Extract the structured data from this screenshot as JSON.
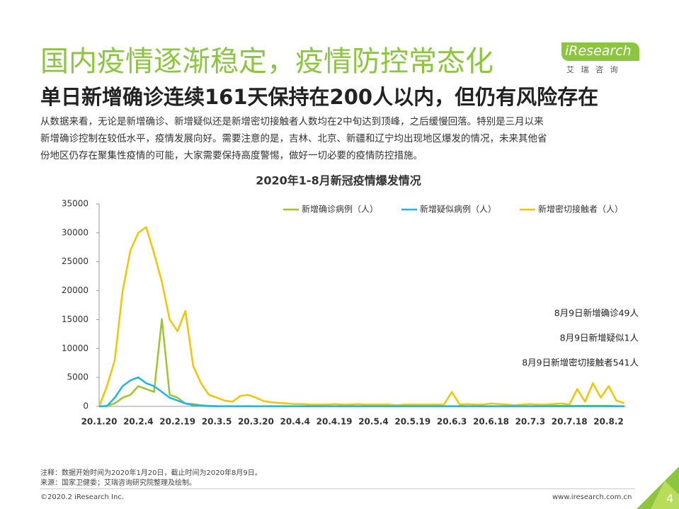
{
  "header": {
    "title": "国内疫情逐渐稳定，疫情防控常态化",
    "subtitle": "单日新增确诊连续161天保持在200人以内，但仍有风险存在",
    "logo": "iResearch",
    "logo_sub": "艾 瑞 咨 询"
  },
  "body": {
    "lines": [
      "从数据来看，无论是新增确诊、新增疑似还是新增密切接触者人数均在2中旬达到顶峰，之后缓慢回落。特别是三月以来",
      "新增确诊控制在较低水平，疫情发展向好。需要注意的是，吉林、北京、新疆和辽宁均出现地区爆发的情况，未来其他省",
      "份地区仍存在聚集性疫情的可能，大家需要保持高度警惕，做好一切必要的疫情防控措施。"
    ]
  },
  "chart_data": {
    "type": "line",
    "title": "2020年1-8月新冠疫情爆发情况",
    "categories": [
      "20.1.20",
      null,
      null,
      null,
      null,
      "20.2.4",
      null,
      null,
      null,
      null,
      "20.2.19",
      null,
      null,
      null,
      null,
      "20.3.5",
      null,
      null,
      null,
      null,
      "20.3.20",
      null,
      null,
      null,
      null,
      "20.4.4",
      null,
      null,
      null,
      null,
      "20.4.19",
      null,
      null,
      null,
      null,
      "20.5.4",
      null,
      null,
      null,
      null,
      "20.5.19",
      null,
      null,
      null,
      null,
      "20.6.3",
      null,
      null,
      null,
      null,
      "20.6.18",
      null,
      null,
      null,
      null,
      "20.7.3",
      null,
      null,
      null,
      null,
      "20.7.18",
      null,
      null,
      null,
      null,
      "20.8.2",
      null,
      null
    ],
    "series": [
      {
        "name": "新增确诊病例（人）",
        "color": "#9dc62d",
        "values": [
          0,
          100,
          500,
          1500,
          2000,
          3500,
          3000,
          2500,
          15100,
          2000,
          1500,
          500,
          400,
          200,
          100,
          50,
          40,
          30,
          40,
          50,
          30,
          20,
          30,
          40,
          20,
          30,
          50,
          40,
          30,
          20,
          30,
          20,
          20,
          30,
          20,
          20,
          30,
          20,
          20,
          30,
          20,
          20,
          30,
          40,
          30,
          50,
          40,
          30,
          20,
          30,
          20,
          20,
          30,
          40,
          30,
          40,
          50,
          60,
          80,
          100,
          90,
          100,
          80,
          100,
          90,
          80,
          60,
          49
        ]
      },
      {
        "name": "新增疑似病例（人）",
        "color": "#1fb5e8",
        "values": [
          0,
          50,
          1500,
          3500,
          4500,
          5000,
          4000,
          3500,
          2500,
          1500,
          1000,
          500,
          200,
          100,
          50,
          30,
          20,
          10,
          10,
          10,
          10,
          10,
          10,
          10,
          10,
          10,
          10,
          10,
          10,
          10,
          10,
          10,
          10,
          10,
          10,
          10,
          10,
          10,
          10,
          10,
          10,
          10,
          10,
          10,
          10,
          10,
          10,
          10,
          10,
          10,
          10,
          10,
          10,
          10,
          10,
          10,
          10,
          10,
          10,
          10,
          10,
          10,
          10,
          10,
          10,
          10,
          10,
          1
        ]
      },
      {
        "name": "新增密切接触者（人）",
        "color": "#f5c400",
        "values": [
          0,
          3500,
          8000,
          20000,
          27000,
          30000,
          31000,
          26500,
          21500,
          15000,
          13000,
          16500,
          7000,
          4000,
          2000,
          1500,
          1000,
          800,
          1800,
          2000,
          1500,
          900,
          700,
          600,
          500,
          400,
          400,
          300,
          300,
          300,
          400,
          300,
          300,
          400,
          300,
          300,
          300,
          300,
          200,
          300,
          300,
          300,
          300,
          300,
          300,
          2500,
          300,
          400,
          300,
          300,
          500,
          400,
          300,
          200,
          300,
          400,
          300,
          300,
          400,
          500,
          300,
          3000,
          800,
          4000,
          1500,
          3500,
          1000,
          541
        ]
      }
    ],
    "ylim": [
      0,
      35000
    ],
    "yticks": [
      0,
      5000,
      10000,
      15000,
      20000,
      25000,
      30000,
      35000
    ],
    "annotations": [
      "8月9日新增确诊49人",
      "8月9日新增疑似1人",
      "8月9日新增密切接触者541人"
    ]
  },
  "footer": {
    "note1": "注释：数据开始时间为2020年1月20日，截止时间为2020年8月9日。",
    "note2": "来源：国家卫健委；艾瑞咨询研究院整理及绘制。",
    "copyright": "©2020.2 iResearch Inc.",
    "url": "www.iresearch.com.cn",
    "page": "4"
  }
}
